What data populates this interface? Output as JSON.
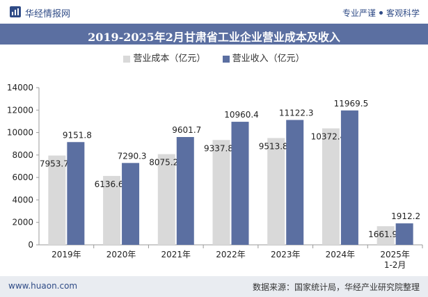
{
  "header": {
    "brand": "华经情报网",
    "slogan_left": "专业严谨",
    "slogan_right": "客观科学"
  },
  "colors": {
    "cost": "#d9d9d9",
    "income": "#5b6fa1",
    "title_bg": "#5b6fa1"
  },
  "chart_data": {
    "type": "bar",
    "title": "2019-2025年2月甘肃省工业企业营业成本及收入",
    "categories": [
      "2019年",
      "2020年",
      "2021年",
      "2022年",
      "2023年",
      "2024年",
      "2025年\n1-2月"
    ],
    "series": [
      {
        "name": "营业成本（亿元）",
        "values": [
          7953.7,
          6136.6,
          8075.2,
          9337.8,
          9513.8,
          10372.4,
          1661.9
        ]
      },
      {
        "name": "营业收入（亿元）",
        "values": [
          9151.8,
          7290.3,
          9601.7,
          10960.4,
          11122.3,
          11969.5,
          1912.2
        ]
      }
    ],
    "ylim": [
      0,
      14000
    ],
    "yticks": [
      0,
      2000,
      4000,
      6000,
      8000,
      10000,
      12000,
      14000
    ],
    "legend_position": "top-center",
    "grid": false
  },
  "footer": {
    "website": "www.huaon.com",
    "source": "数据来源：国家统计局，华经产业研究院整理"
  }
}
